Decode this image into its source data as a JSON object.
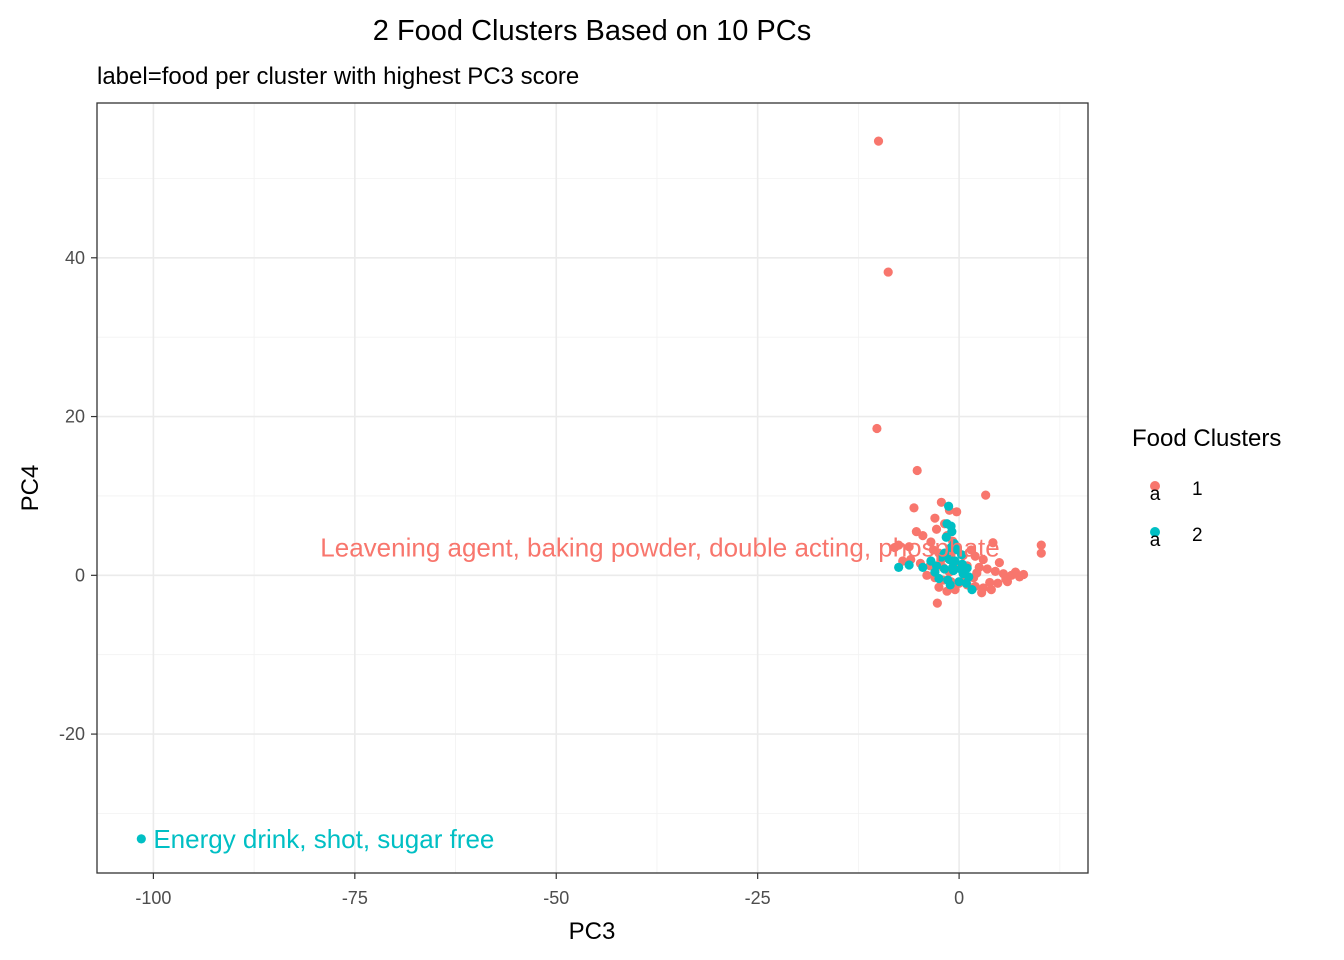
{
  "chart_data": {
    "type": "scatter",
    "title": "2 Food Clusters Based on 10 PCs",
    "subtitle": "label=food per cluster with highest PC3 score",
    "xlabel": "PC3",
    "ylabel": "PC4",
    "xlim": [
      -107,
      16
    ],
    "ylim": [
      -37.5,
      59.5
    ],
    "x_ticks": [
      -100,
      -75,
      -50,
      -25,
      0
    ],
    "x_tick_labels": [
      "-100",
      "-75",
      "-50",
      "-25",
      "0"
    ],
    "y_ticks": [
      -20,
      0,
      20,
      40
    ],
    "y_tick_labels": [
      "-20",
      "0",
      "20",
      "40"
    ],
    "grid": true,
    "legend": {
      "title": "Food Clusters",
      "position": "right",
      "key_glyph": "a",
      "entries": [
        {
          "label": "1",
          "color": "#F8766D"
        },
        {
          "label": "2",
          "color": "#00BFC4"
        }
      ]
    },
    "series": [
      {
        "name": "1",
        "color": "#F8766D",
        "points": [
          [
            -10,
            54.7
          ],
          [
            -8.8,
            38.2
          ],
          [
            -10.2,
            18.5
          ],
          [
            -5.2,
            13.2
          ],
          [
            3.3,
            10.1
          ],
          [
            -5.6,
            8.5
          ],
          [
            -2.2,
            9.2
          ],
          [
            -1.2,
            8.2
          ],
          [
            -0.3,
            8.0
          ],
          [
            -3.0,
            7.2
          ],
          [
            -1.8,
            6.5
          ],
          [
            -2.8,
            5.8
          ],
          [
            -5.3,
            5.5
          ],
          [
            -4.5,
            5.0
          ],
          [
            -1.5,
            5.0
          ],
          [
            -0.8,
            4.3
          ],
          [
            4.2,
            4.1
          ],
          [
            10.2,
            3.8
          ],
          [
            -7.5,
            3.8
          ],
          [
            -6.2,
            3.6
          ],
          [
            -8.0,
            3.5
          ],
          [
            -3.2,
            3.2
          ],
          [
            -2.5,
            2.8
          ],
          [
            -1.0,
            2.6
          ],
          [
            0.5,
            2.5
          ],
          [
            2.0,
            2.4
          ],
          [
            10.2,
            2.8
          ],
          [
            -6.0,
            2.0
          ],
          [
            -7.0,
            1.8
          ],
          [
            -4.8,
            1.5
          ],
          [
            -3.6,
            1.2
          ],
          [
            -2.0,
            1.0
          ],
          [
            -0.5,
            1.5
          ],
          [
            1.0,
            1.2
          ],
          [
            2.5,
            1.0
          ],
          [
            3.5,
            0.8
          ],
          [
            4.5,
            0.5
          ],
          [
            5.5,
            0.2
          ],
          [
            6.5,
            0.0
          ],
          [
            7.5,
            -0.2
          ],
          [
            8.0,
            0.1
          ],
          [
            -4.0,
            0.0
          ],
          [
            -3.0,
            -0.3
          ],
          [
            -2.0,
            -0.6
          ],
          [
            -1.0,
            -0.8
          ],
          [
            0.0,
            -1.0
          ],
          [
            1.0,
            -1.2
          ],
          [
            2.0,
            -1.4
          ],
          [
            3.0,
            -1.6
          ],
          [
            4.0,
            -1.8
          ],
          [
            -2.5,
            -1.5
          ],
          [
            -1.5,
            -2.0
          ],
          [
            -0.5,
            -1.8
          ],
          [
            -2.7,
            -3.5
          ],
          [
            2.8,
            -2.2
          ],
          [
            6.0,
            -0.8
          ],
          [
            7.0,
            0.4
          ],
          [
            5.0,
            1.6
          ],
          [
            3.0,
            2.0
          ],
          [
            -3.5,
            4.2
          ],
          [
            1.5,
            3.2
          ],
          [
            0.8,
            -0.5
          ],
          [
            2.2,
            0.3
          ],
          [
            -1.2,
            0.4
          ],
          [
            -0.2,
            3.5
          ],
          [
            3.8,
            -0.9
          ],
          [
            5.8,
            -0.5
          ],
          [
            -2.2,
            2.0
          ],
          [
            1.8,
            -0.3
          ],
          [
            4.8,
            -1.0
          ]
        ]
      },
      {
        "name": "2",
        "color": "#00BFC4",
        "points": [
          [
            -101.5,
            -33.2
          ],
          [
            -1.3,
            8.7
          ],
          [
            -1.5,
            6.5
          ],
          [
            -1.0,
            6.2
          ],
          [
            -0.9,
            5.5
          ],
          [
            -1.6,
            4.8
          ],
          [
            -0.6,
            4.0
          ],
          [
            -1.0,
            3.5
          ],
          [
            -0.2,
            3.2
          ],
          [
            0.3,
            2.6
          ],
          [
            -1.8,
            2.8
          ],
          [
            -2.2,
            2.3
          ],
          [
            -1.2,
            2.0
          ],
          [
            -0.5,
            1.8
          ],
          [
            0.4,
            1.4
          ],
          [
            -3.5,
            1.8
          ],
          [
            -2.8,
            1.2
          ],
          [
            -7.5,
            1.0
          ],
          [
            -6.2,
            1.3
          ],
          [
            -4.5,
            1.0
          ],
          [
            -3.0,
            0.4
          ],
          [
            -1.8,
            0.8
          ],
          [
            -0.7,
            0.6
          ],
          [
            0.5,
            0.2
          ],
          [
            1.2,
            -0.2
          ],
          [
            -2.5,
            -0.4
          ],
          [
            -1.4,
            -0.6
          ],
          [
            0.0,
            -0.8
          ],
          [
            0.9,
            -1.0
          ],
          [
            1.6,
            -1.8
          ],
          [
            -0.8,
            1.0
          ],
          [
            0.2,
            0.8
          ],
          [
            -1.1,
            -1.2
          ],
          [
            1.0,
            0.9
          ]
        ]
      }
    ],
    "annotations": [
      {
        "text": "Leavening agent, baking powder, double acting, phosphate",
        "series": "1",
        "x": -10.2,
        "y": 3.5
      },
      {
        "text": "Energy drink, shot, sugar free",
        "series": "2",
        "x": -101.5,
        "y": -33.2
      }
    ]
  }
}
